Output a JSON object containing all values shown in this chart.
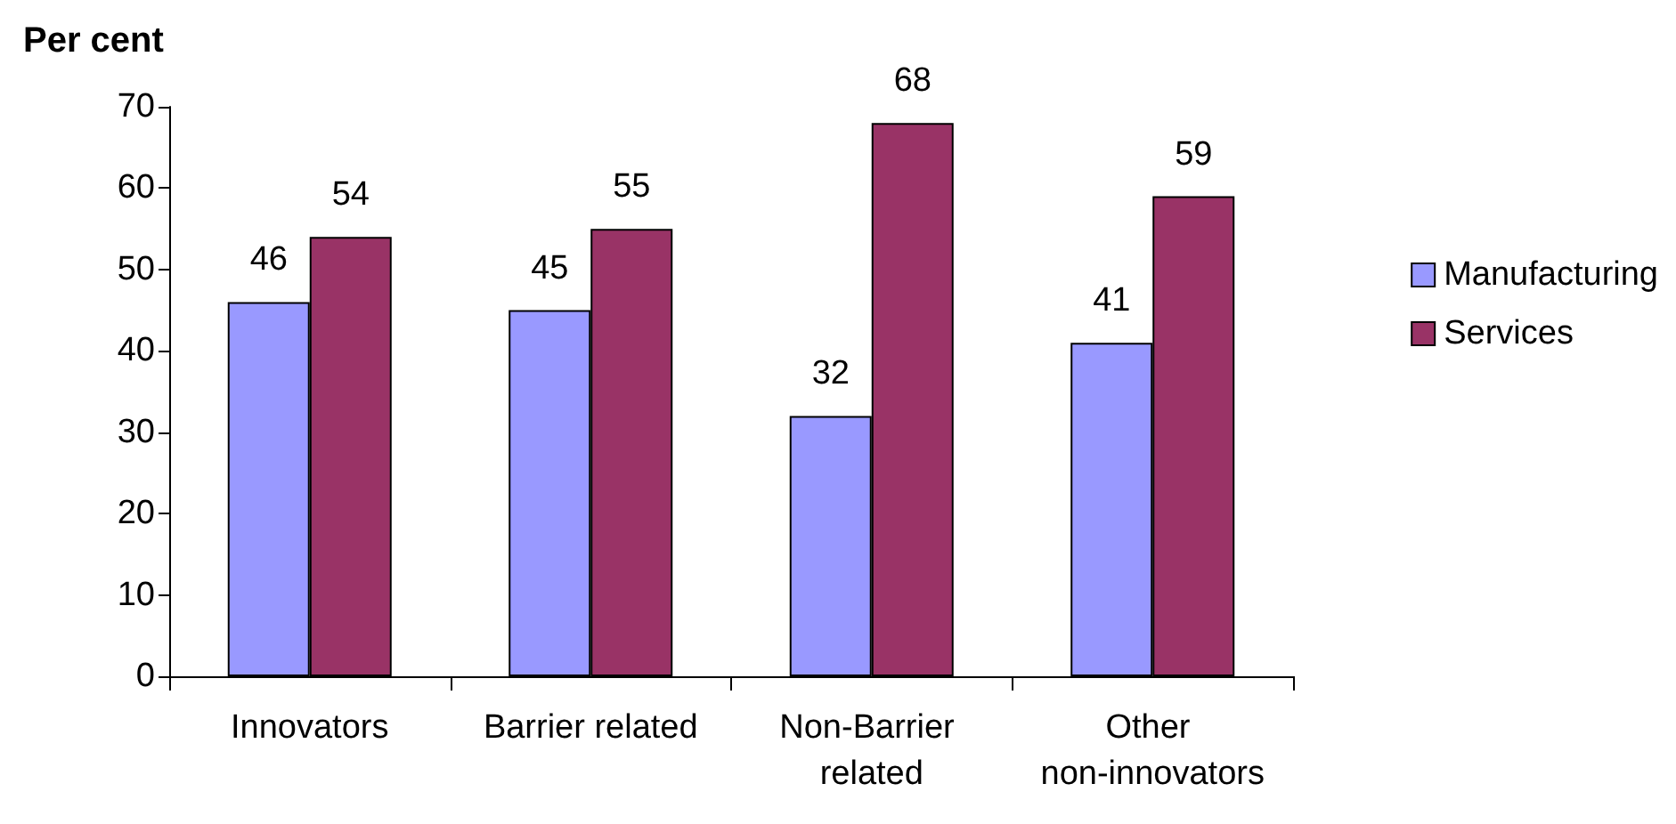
{
  "chart_data": {
    "type": "bar",
    "ylabel": "Per cent",
    "categories": [
      "Innovators",
      "Barrier related",
      "Non-Barrier related",
      "Other non-innovators"
    ],
    "series": [
      {
        "name": "Manufacturing",
        "color": "#9999ff",
        "values": [
          46,
          45,
          32,
          41
        ]
      },
      {
        "name": "Services",
        "color": "#993366",
        "values": [
          54,
          55,
          68,
          59
        ]
      }
    ],
    "ylim": [
      0,
      70
    ],
    "yticks": [
      0,
      10,
      20,
      30,
      40,
      50,
      60,
      70
    ],
    "grid": false,
    "legend": "right",
    "data_labels": true
  }
}
